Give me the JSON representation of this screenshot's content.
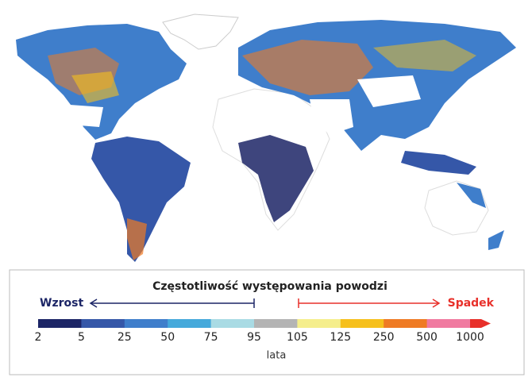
{
  "legend": {
    "title": "Częstotliwość występowania powodzi",
    "left_label": "Wzrost",
    "right_label": "Spadek",
    "unit": "lata",
    "ticks": [
      2,
      5,
      25,
      50,
      75,
      95,
      105,
      125,
      250,
      500,
      1000
    ],
    "colors": [
      "#1c2566",
      "#3557a8",
      "#3f7ecb",
      "#45a9db",
      "#a9dbe4",
      "#b4b4b4",
      "#f5ee8c",
      "#f6c01c",
      "#ef7b24",
      "#f07aa0",
      "#e8302a"
    ]
  }
}
